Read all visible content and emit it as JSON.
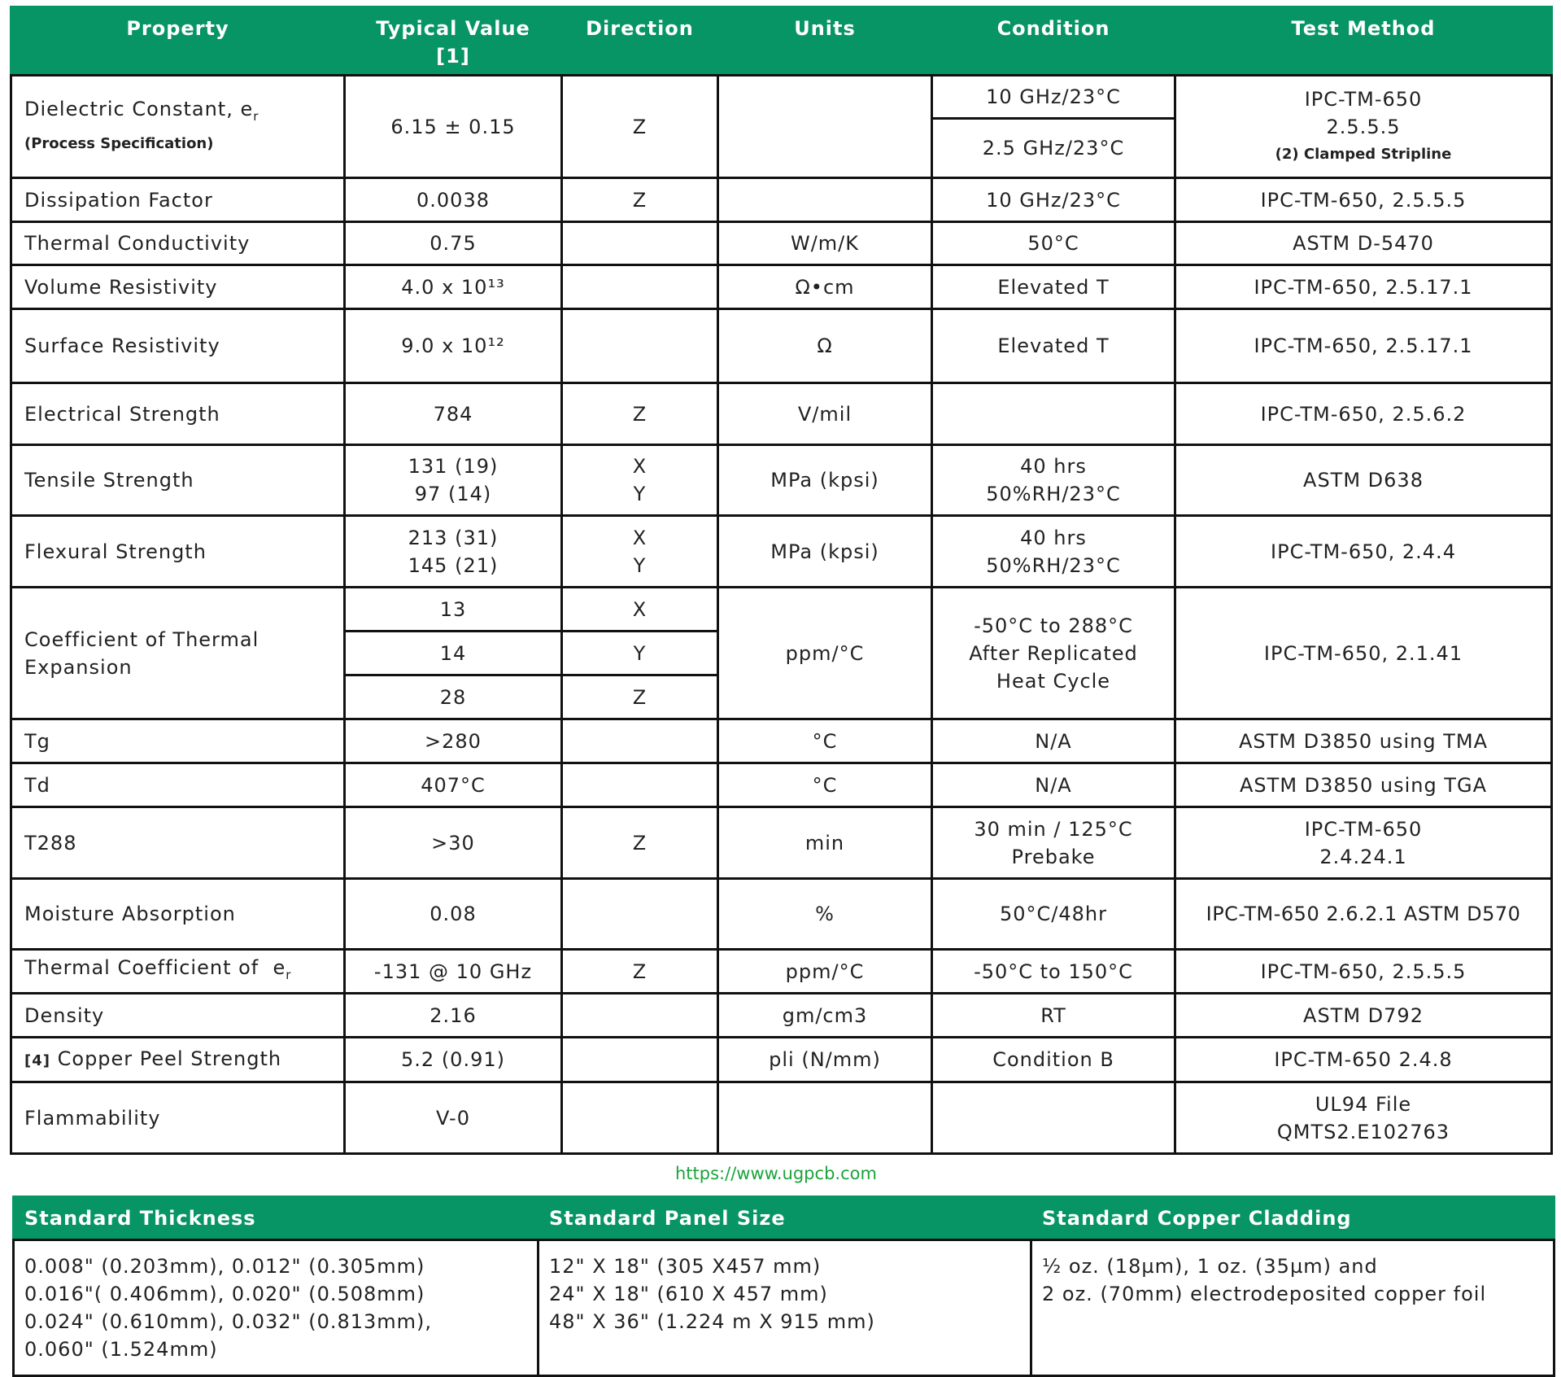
{
  "headers": [
    "Property",
    "Typical Value",
    "[1]",
    "Direction",
    "Units",
    "Condition",
    "Test Method"
  ],
  "rows": {
    "dk": {
      "property": "Dielectric Constant, e",
      "sub": "r",
      "note": "(Process Specification)",
      "value": "6.15 ± 0.15",
      "direction": "Z",
      "units": "",
      "condition1": "10 GHz/23°C",
      "condition2": "2.5 GHz/23°C",
      "method1": "IPC-TM-650",
      "method2": "2.5.5.5",
      "method3": "(2) Clamped Stripline"
    },
    "df": {
      "property": "Dissipation Factor",
      "value": "0.0038",
      "direction": "Z",
      "units": "",
      "condition": "10 GHz/23°C",
      "method": "IPC-TM-650, 2.5.5.5"
    },
    "tc": {
      "property": "Thermal Conductivity",
      "value": "0.75",
      "direction": "",
      "units": "W/m/K",
      "condition": "50°C",
      "method": "ASTM D-5470"
    },
    "vr": {
      "property": "Volume Resistivity",
      "value": "4.0 x 10¹³",
      "direction": "",
      "units": "Ω•cm",
      "condition": "Elevated T",
      "method": "IPC-TM-650, 2.5.17.1"
    },
    "sr": {
      "property": "Surface Resistivity",
      "value": "9.0 x 10¹²",
      "direction": "",
      "units": "Ω",
      "condition": "Elevated T",
      "method": "IPC-TM-650, 2.5.17.1"
    },
    "es": {
      "property": "Electrical Strength",
      "value": "784",
      "direction": "Z",
      "units": "V/mil",
      "condition": "",
      "method": "IPC-TM-650, 2.5.6.2"
    },
    "ts": {
      "property": "Tensile Strength",
      "value1": "131 (19)",
      "value2": "97 (14)",
      "direction1": "X",
      "direction2": "Y",
      "units": "MPa (kpsi)",
      "condition1": "40 hrs",
      "condition2": "50%RH/23°C",
      "method": "ASTM D638"
    },
    "fs": {
      "property": "Flexural Strength",
      "value1": "213 (31)",
      "value2": "145 (21)",
      "direction1": "X",
      "direction2": "Y",
      "units": "MPa (kpsi)",
      "condition1": "40 hrs",
      "condition2": "50%RH/23°C",
      "method": "IPC-TM-650, 2.4.4"
    },
    "cte": {
      "property1": "Coefficient of Thermal",
      "property2": "Expansion",
      "values": [
        "13",
        "14",
        "28"
      ],
      "directions": [
        "X",
        "Y",
        "Z"
      ],
      "units": "ppm/°C",
      "condition1": "-50°C to 288°C",
      "condition2": "After Replicated",
      "condition3": "Heat Cycle",
      "method": "IPC-TM-650, 2.1.41"
    },
    "tg": {
      "property": "Tg",
      "value": ">280",
      "direction": "",
      "units": "°C",
      "condition": "N/A",
      "method": "ASTM D3850 using TMA"
    },
    "td": {
      "property": "Td",
      "value": "407°C",
      "direction": "",
      "units": "°C",
      "condition": "N/A",
      "method": "ASTM D3850 using TGA"
    },
    "t288": {
      "property": "T288",
      "value": ">30",
      "direction": "Z",
      "units": "min",
      "condition1": "30 min / 125°C",
      "condition2": "Prebake",
      "method1": "IPC-TM-650",
      "method2": "2.4.24.1"
    },
    "ma": {
      "property": "Moisture Absorption",
      "value": "0.08",
      "direction": "",
      "units": "%",
      "condition": "50°C/48hr",
      "method": "IPC-TM-650 2.6.2.1 ASTM D570"
    },
    "tcdk": {
      "property": "Thermal Coefficient of  e",
      "sub": "r",
      "value": "-131 @ 10 GHz",
      "direction": "Z",
      "units": "ppm/°C",
      "condition": "-50°C to 150°C",
      "method": "IPC-TM-650, 2.5.5.5"
    },
    "dens": {
      "property": "Density",
      "value": "2.16",
      "direction": "",
      "units": "gm/cm3",
      "condition": "RT",
      "method": "ASTM D792"
    },
    "peel": {
      "note": "[4]",
      "property": "Copper Peel Strength",
      "value": "5.2 (0.91)",
      "direction": "",
      "units": "pli (N/mm)",
      "condition": "Condition B",
      "method": "IPC-TM-650 2.4.8"
    },
    "flam": {
      "property": "Flammability",
      "value": "V-0",
      "direction": "",
      "units": "",
      "condition": "",
      "method1": "UL94 File",
      "method2": "QMTS2.E102763"
    }
  },
  "standard": {
    "headers": [
      "Standard Thickness",
      "Standard Panel Size",
      "Standard Copper Cladding"
    ],
    "thickness": [
      "0.008\" (0.203mm), 0.012\" (0.305mm)",
      "0.016\"( 0.406mm), 0.020\" (0.508mm)",
      "0.024\" (0.610mm), 0.032\" (0.813mm),",
      "0.060\" (1.524mm)"
    ],
    "panel": [
      "12\" X 18\" (305 X457 mm)",
      "24\" X 18\" (610 X 457 mm)",
      "48\" X 36\" (1.224 m X 915 mm)"
    ],
    "cladding": [
      "½ oz. (18µm), 1 oz. (35µm) and",
      "2 oz. (70mm) electrodeposited copper foil"
    ]
  },
  "watermark": "https://www.ugpcb.com",
  "colors": {
    "header_green": "#079566",
    "watermark": "#1aa43a"
  }
}
